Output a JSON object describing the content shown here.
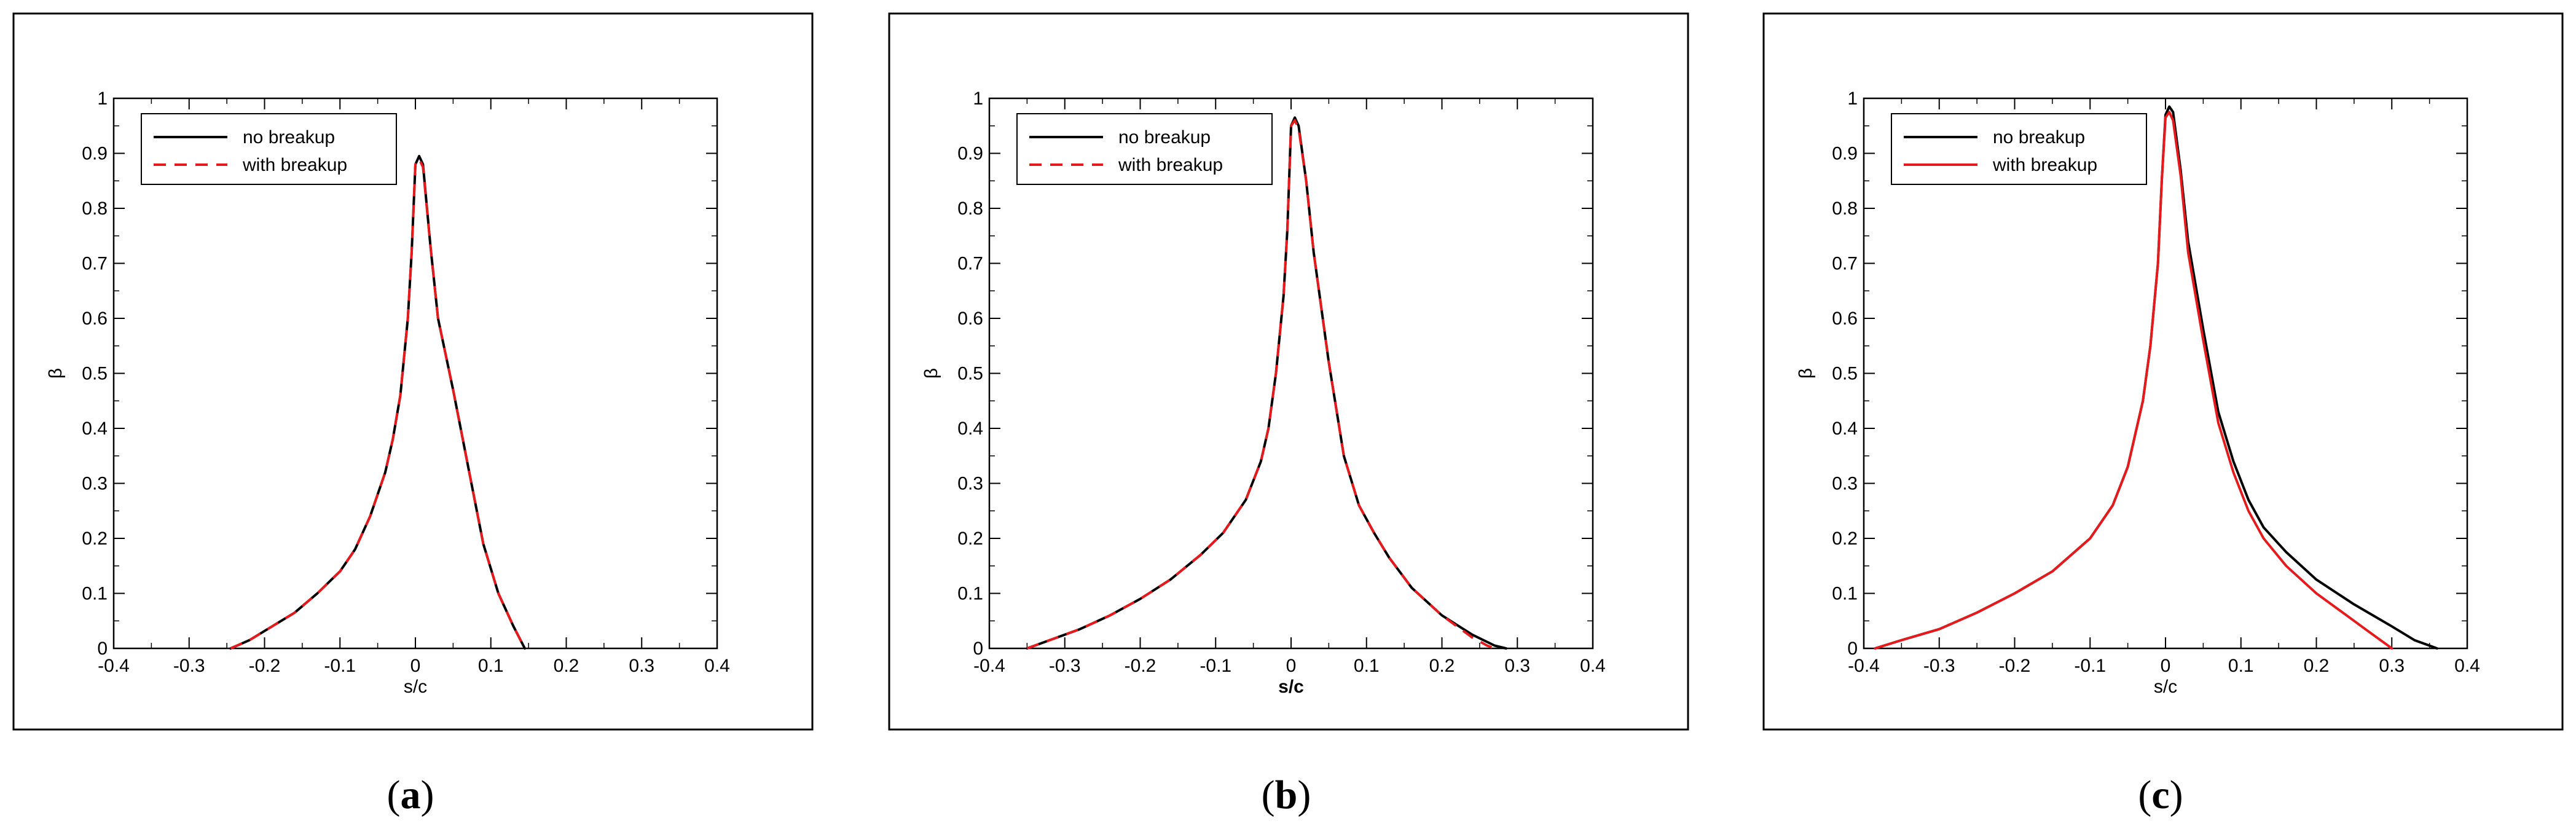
{
  "chart_data": [
    {
      "type": "line",
      "panel_label": "a",
      "xlabel": "s/c",
      "ylabel": "β",
      "xlim": [
        -0.4,
        0.4
      ],
      "ylim": [
        0,
        1
      ],
      "xticks": [
        "-0.4",
        "-0.3",
        "-0.2",
        "-0.1",
        "0",
        "0.1",
        "0.2",
        "0.3",
        "0.4"
      ],
      "yticks": [
        "0",
        "0.1",
        "0.2",
        "0.3",
        "0.4",
        "0.5",
        "0.6",
        "0.7",
        "0.8",
        "0.9",
        "1"
      ],
      "legend_position": "top-left",
      "grid": false,
      "series": [
        {
          "name": "no breakup",
          "color": "#000000",
          "dashed": false,
          "points": [
            [
              -0.245,
              0
            ],
            [
              -0.22,
              0.015
            ],
            [
              -0.19,
              0.04
            ],
            [
              -0.16,
              0.065
            ],
            [
              -0.13,
              0.1
            ],
            [
              -0.1,
              0.14
            ],
            [
              -0.08,
              0.18
            ],
            [
              -0.06,
              0.24
            ],
            [
              -0.04,
              0.32
            ],
            [
              -0.03,
              0.38
            ],
            [
              -0.02,
              0.46
            ],
            [
              -0.01,
              0.6
            ],
            [
              -0.005,
              0.72
            ],
            [
              0,
              0.88
            ],
            [
              0.005,
              0.895
            ],
            [
              0.01,
              0.88
            ],
            [
              0.02,
              0.73
            ],
            [
              0.03,
              0.6
            ],
            [
              0.05,
              0.47
            ],
            [
              0.07,
              0.33
            ],
            [
              0.09,
              0.19
            ],
            [
              0.11,
              0.1
            ],
            [
              0.13,
              0.04
            ],
            [
              0.145,
              0
            ]
          ]
        },
        {
          "name": "with breakup",
          "color": "#e41a1c",
          "dashed": true,
          "points": [
            [
              -0.245,
              0
            ],
            [
              -0.22,
              0.015
            ],
            [
              -0.19,
              0.04
            ],
            [
              -0.16,
              0.065
            ],
            [
              -0.13,
              0.1
            ],
            [
              -0.1,
              0.14
            ],
            [
              -0.08,
              0.18
            ],
            [
              -0.06,
              0.24
            ],
            [
              -0.04,
              0.32
            ],
            [
              -0.03,
              0.38
            ],
            [
              -0.02,
              0.46
            ],
            [
              -0.01,
              0.6
            ],
            [
              -0.005,
              0.72
            ],
            [
              0,
              0.88
            ],
            [
              0.005,
              0.89
            ],
            [
              0.01,
              0.875
            ],
            [
              0.02,
              0.73
            ],
            [
              0.03,
              0.6
            ],
            [
              0.05,
              0.47
            ],
            [
              0.07,
              0.33
            ],
            [
              0.09,
              0.19
            ],
            [
              0.11,
              0.1
            ],
            [
              0.13,
              0.04
            ],
            [
              0.145,
              0
            ]
          ]
        }
      ]
    },
    {
      "type": "line",
      "panel_label": "b",
      "xlabel": "s/c",
      "ylabel": "β",
      "xlim": [
        -0.4,
        0.4
      ],
      "ylim": [
        0,
        1
      ],
      "xticks": [
        "-0.4",
        "-0.3",
        "-0.2",
        "-0.1",
        "0",
        "0.1",
        "0.2",
        "0.3",
        "0.4"
      ],
      "yticks": [
        "0",
        "0.1",
        "0.2",
        "0.3",
        "0.4",
        "0.5",
        "0.6",
        "0.7",
        "0.8",
        "0.9",
        "1"
      ],
      "legend_position": "top-left",
      "grid": false,
      "series": [
        {
          "name": "no breakup",
          "color": "#000000",
          "dashed": false,
          "points": [
            [
              -0.35,
              0
            ],
            [
              -0.32,
              0.015
            ],
            [
              -0.28,
              0.035
            ],
            [
              -0.24,
              0.06
            ],
            [
              -0.2,
              0.09
            ],
            [
              -0.16,
              0.125
            ],
            [
              -0.12,
              0.17
            ],
            [
              -0.09,
              0.21
            ],
            [
              -0.06,
              0.27
            ],
            [
              -0.04,
              0.34
            ],
            [
              -0.03,
              0.4
            ],
            [
              -0.02,
              0.5
            ],
            [
              -0.01,
              0.64
            ],
            [
              -0.005,
              0.76
            ],
            [
              0,
              0.95
            ],
            [
              0.005,
              0.965
            ],
            [
              0.01,
              0.95
            ],
            [
              0.02,
              0.85
            ],
            [
              0.03,
              0.72
            ],
            [
              0.05,
              0.52
            ],
            [
              0.07,
              0.35
            ],
            [
              0.09,
              0.26
            ],
            [
              0.11,
              0.21
            ],
            [
              0.13,
              0.165
            ],
            [
              0.16,
              0.11
            ],
            [
              0.2,
              0.06
            ],
            [
              0.24,
              0.025
            ],
            [
              0.27,
              0.005
            ],
            [
              0.285,
              0
            ]
          ]
        },
        {
          "name": "with breakup",
          "color": "#e41a1c",
          "dashed": true,
          "points": [
            [
              -0.35,
              0
            ],
            [
              -0.32,
              0.015
            ],
            [
              -0.28,
              0.035
            ],
            [
              -0.24,
              0.06
            ],
            [
              -0.2,
              0.09
            ],
            [
              -0.16,
              0.125
            ],
            [
              -0.12,
              0.17
            ],
            [
              -0.09,
              0.21
            ],
            [
              -0.06,
              0.27
            ],
            [
              -0.04,
              0.34
            ],
            [
              -0.03,
              0.4
            ],
            [
              -0.02,
              0.5
            ],
            [
              -0.01,
              0.64
            ],
            [
              -0.005,
              0.76
            ],
            [
              0,
              0.95
            ],
            [
              0.005,
              0.96
            ],
            [
              0.01,
              0.945
            ],
            [
              0.02,
              0.85
            ],
            [
              0.03,
              0.72
            ],
            [
              0.05,
              0.52
            ],
            [
              0.07,
              0.35
            ],
            [
              0.09,
              0.26
            ],
            [
              0.11,
              0.21
            ],
            [
              0.13,
              0.165
            ],
            [
              0.16,
              0.11
            ],
            [
              0.2,
              0.06
            ],
            [
              0.24,
              0.02
            ],
            [
              0.26,
              0.005
            ],
            [
              0.27,
              0
            ]
          ]
        }
      ]
    },
    {
      "type": "line",
      "panel_label": "c",
      "xlabel": "s/c",
      "ylabel": "β",
      "xlim": [
        -0.4,
        0.4
      ],
      "ylim": [
        0,
        1
      ],
      "xticks": [
        "-0.4",
        "-0.3",
        "-0.2",
        "-0.1",
        "0",
        "0.1",
        "0.2",
        "0.3",
        "0.4"
      ],
      "yticks": [
        "0",
        "0.1",
        "0.2",
        "0.3",
        "0.4",
        "0.5",
        "0.6",
        "0.7",
        "0.8",
        "0.9",
        "1"
      ],
      "legend_position": "top-left",
      "grid": false,
      "series": [
        {
          "name": "no breakup",
          "color": "#000000",
          "dashed": false,
          "points": [
            [
              -0.385,
              0
            ],
            [
              -0.35,
              0.015
            ],
            [
              -0.3,
              0.035
            ],
            [
              -0.25,
              0.065
            ],
            [
              -0.2,
              0.1
            ],
            [
              -0.15,
              0.14
            ],
            [
              -0.1,
              0.2
            ],
            [
              -0.07,
              0.26
            ],
            [
              -0.05,
              0.33
            ],
            [
              -0.03,
              0.45
            ],
            [
              -0.02,
              0.55
            ],
            [
              -0.01,
              0.7
            ],
            [
              -0.005,
              0.85
            ],
            [
              0,
              0.97
            ],
            [
              0.005,
              0.985
            ],
            [
              0.01,
              0.975
            ],
            [
              0.02,
              0.87
            ],
            [
              0.03,
              0.74
            ],
            [
              0.05,
              0.58
            ],
            [
              0.07,
              0.43
            ],
            [
              0.09,
              0.34
            ],
            [
              0.11,
              0.27
            ],
            [
              0.13,
              0.22
            ],
            [
              0.16,
              0.175
            ],
            [
              0.2,
              0.125
            ],
            [
              0.25,
              0.08
            ],
            [
              0.3,
              0.04
            ],
            [
              0.33,
              0.015
            ],
            [
              0.35,
              0.005
            ],
            [
              0.36,
              0
            ]
          ]
        },
        {
          "name": "with breakup",
          "color": "#e41a1c",
          "dashed": false,
          "points": [
            [
              -0.385,
              0
            ],
            [
              -0.35,
              0.015
            ],
            [
              -0.3,
              0.035
            ],
            [
              -0.25,
              0.065
            ],
            [
              -0.2,
              0.1
            ],
            [
              -0.15,
              0.14
            ],
            [
              -0.1,
              0.2
            ],
            [
              -0.07,
              0.26
            ],
            [
              -0.05,
              0.33
            ],
            [
              -0.03,
              0.45
            ],
            [
              -0.02,
              0.55
            ],
            [
              -0.01,
              0.7
            ],
            [
              -0.005,
              0.85
            ],
            [
              0,
              0.965
            ],
            [
              0.005,
              0.975
            ],
            [
              0.01,
              0.96
            ],
            [
              0.02,
              0.86
            ],
            [
              0.03,
              0.72
            ],
            [
              0.05,
              0.56
            ],
            [
              0.07,
              0.41
            ],
            [
              0.09,
              0.32
            ],
            [
              0.11,
              0.25
            ],
            [
              0.13,
              0.2
            ],
            [
              0.16,
              0.15
            ],
            [
              0.2,
              0.1
            ],
            [
              0.24,
              0.06
            ],
            [
              0.27,
              0.03
            ],
            [
              0.29,
              0.01
            ],
            [
              0.3,
              0
            ]
          ]
        }
      ]
    }
  ]
}
